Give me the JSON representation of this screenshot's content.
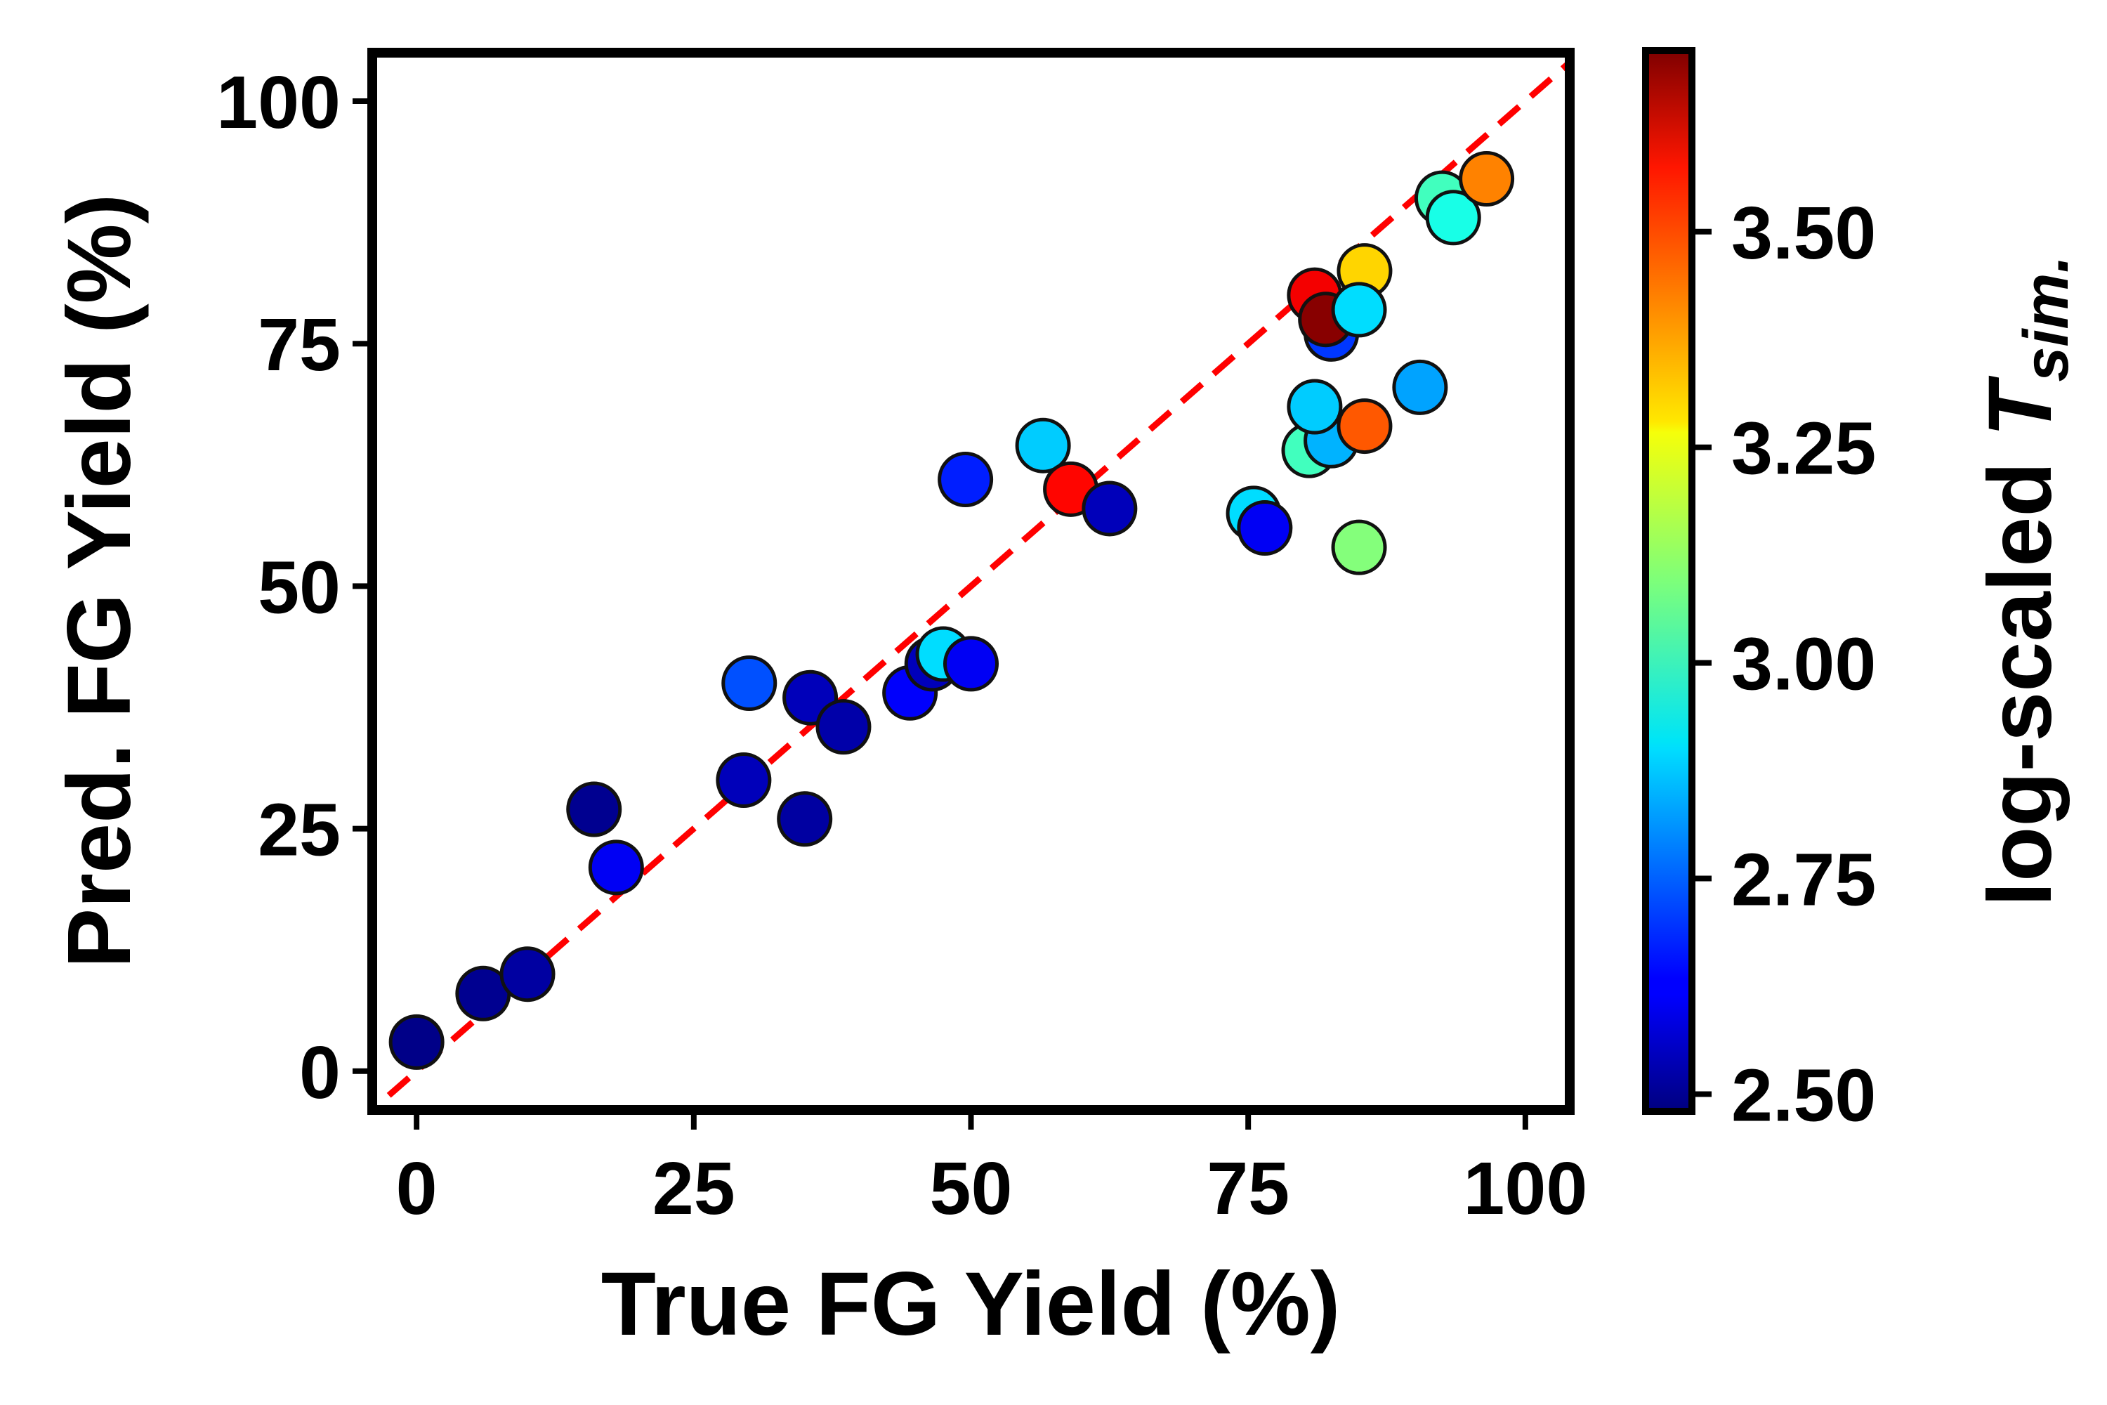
{
  "chart_data": {
    "type": "scatter",
    "xlabel": "True FG Yield (%)",
    "ylabel": "Pred. FG Yield (%)",
    "xlim": [
      -4,
      104
    ],
    "ylim": [
      -4,
      105
    ],
    "xticks": [
      "0",
      "25",
      "50",
      "75",
      "100"
    ],
    "yticks": [
      "0",
      "25",
      "50",
      "75",
      "100"
    ],
    "xtick_values": [
      0,
      25,
      50,
      75,
      100
    ],
    "ytick_values": [
      0,
      25,
      50,
      75,
      100
    ],
    "reference_line": {
      "type": "y=x",
      "style": "dashed",
      "color": "#ff0000"
    },
    "colorbar": {
      "label_prefix": "log-scaled ",
      "label_symbol": "T",
      "label_subscript": "sim.",
      "range": [
        2.48,
        3.71
      ],
      "ticks": [
        "2.50",
        "2.75",
        "3.00",
        "3.25",
        "3.50"
      ],
      "tick_values": [
        2.5,
        2.75,
        3.0,
        3.25,
        3.5
      ],
      "colormap": "jet"
    },
    "points": [
      {
        "x": 0,
        "y": 3,
        "c": 2.49
      },
      {
        "x": 6,
        "y": 8,
        "c": 2.5
      },
      {
        "x": 10,
        "y": 10,
        "c": 2.52
      },
      {
        "x": 16,
        "y": 27,
        "c": 2.5
      },
      {
        "x": 18,
        "y": 21,
        "c": 2.62
      },
      {
        "x": 29.5,
        "y": 30,
        "c": 2.55
      },
      {
        "x": 30,
        "y": 40,
        "c": 2.73
      },
      {
        "x": 35,
        "y": 26,
        "c": 2.52
      },
      {
        "x": 35.5,
        "y": 38.5,
        "c": 2.55
      },
      {
        "x": 38.5,
        "y": 35.5,
        "c": 2.53
      },
      {
        "x": 44.5,
        "y": 39,
        "c": 2.63
      },
      {
        "x": 46.5,
        "y": 42,
        "c": 2.55
      },
      {
        "x": 47.5,
        "y": 43,
        "c": 2.9
      },
      {
        "x": 50,
        "y": 42,
        "c": 2.62
      },
      {
        "x": 49.5,
        "y": 61,
        "c": 2.67
      },
      {
        "x": 56.5,
        "y": 64.5,
        "c": 2.88
      },
      {
        "x": 59,
        "y": 60,
        "c": 3.55
      },
      {
        "x": 62.5,
        "y": 58,
        "c": 2.55
      },
      {
        "x": 75.5,
        "y": 57.5,
        "c": 2.9
      },
      {
        "x": 76.5,
        "y": 56,
        "c": 2.62
      },
      {
        "x": 80.5,
        "y": 64,
        "c": 3.02
      },
      {
        "x": 82.5,
        "y": 65,
        "c": 2.85
      },
      {
        "x": 81,
        "y": 68.5,
        "c": 2.88
      },
      {
        "x": 85,
        "y": 54,
        "c": 3.1
      },
      {
        "x": 85.5,
        "y": 66.5,
        "c": 3.45
      },
      {
        "x": 90.5,
        "y": 70.5,
        "c": 2.83
      },
      {
        "x": 81,
        "y": 80,
        "c": 3.57
      },
      {
        "x": 82.5,
        "y": 76,
        "c": 2.7
      },
      {
        "x": 82,
        "y": 77.5,
        "c": 3.7
      },
      {
        "x": 85.5,
        "y": 82.5,
        "c": 3.3
      },
      {
        "x": 85,
        "y": 78.5,
        "c": 2.9
      },
      {
        "x": 92.5,
        "y": 90,
        "c": 3.02
      },
      {
        "x": 93.5,
        "y": 88,
        "c": 2.97
      },
      {
        "x": 96.5,
        "y": 92,
        "c": 3.4
      }
    ]
  }
}
